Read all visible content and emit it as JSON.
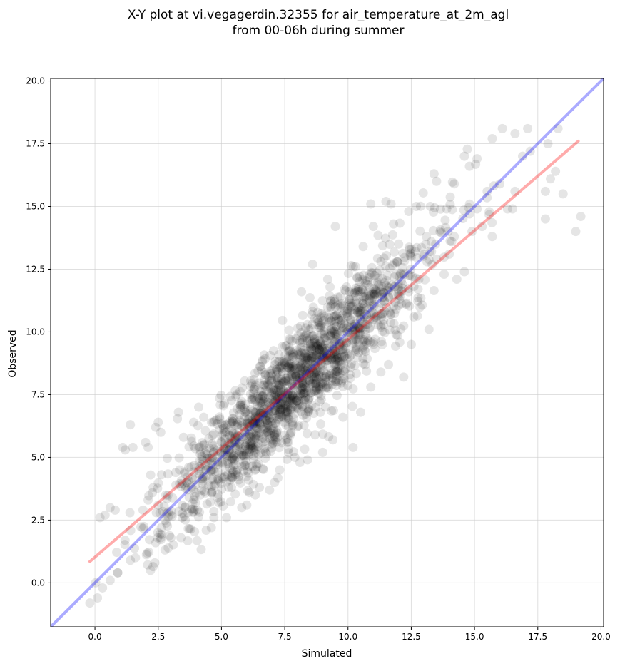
{
  "chart_data": {
    "type": "scatter",
    "title": "X-Y plot at vi.vegagerdin.32355 for air_temperature_at_2m_agl",
    "subtitle": "from 00-06h during summer",
    "xlabel": "Simulated",
    "ylabel": "Observed",
    "xlim": [
      -1.75,
      20.1
    ],
    "ylim": [
      -1.75,
      20.1
    ],
    "xticks": [
      0.0,
      2.5,
      5.0,
      7.5,
      10.0,
      12.5,
      15.0,
      17.5,
      20.0
    ],
    "yticks": [
      0.0,
      2.5,
      5.0,
      7.5,
      10.0,
      12.5,
      15.0,
      17.5,
      20.0
    ],
    "tick_labels": [
      "0.0",
      "2.5",
      "5.0",
      "7.5",
      "10.0",
      "12.5",
      "15.0",
      "17.5",
      "20.0"
    ],
    "grid": true,
    "colors": {
      "points": "#000000",
      "identity_line": "#0000ff",
      "fit_line": "#ff0000",
      "grid": "#cccccc"
    },
    "series": [
      {
        "kind": "points",
        "points": [
          [
            -0.2,
            -0.8
          ],
          [
            0.1,
            -0.6
          ],
          [
            0.3,
            -0.2
          ],
          [
            0.2,
            2.6
          ],
          [
            0.4,
            2.7
          ],
          [
            0.6,
            3.0
          ],
          [
            0.8,
            2.9
          ],
          [
            0.9,
            0.4
          ],
          [
            1.1,
            5.4
          ],
          [
            1.2,
            5.3
          ],
          [
            1.4,
            6.3
          ],
          [
            1.5,
            5.4
          ],
          [
            1.6,
            1.0
          ],
          [
            1.4,
            0.9
          ],
          [
            0.6,
            0.1
          ],
          [
            0.9,
            0.4
          ],
          [
            1.9,
            2.9
          ],
          [
            2.0,
            5.6
          ],
          [
            2.1,
            5.4
          ],
          [
            2.2,
            4.3
          ],
          [
            2.4,
            6.2
          ],
          [
            2.5,
            6.4
          ],
          [
            2.6,
            6.0
          ],
          [
            2.4,
            1.6
          ],
          [
            2.6,
            1.8
          ],
          [
            3.0,
            1.8
          ],
          [
            3.4,
            1.8
          ],
          [
            2.1,
            3.3
          ],
          [
            2.3,
            3.8
          ],
          [
            2.5,
            3.1
          ],
          [
            2.8,
            3.5
          ],
          [
            3.0,
            2.7
          ],
          [
            3.2,
            3.9
          ],
          [
            3.3,
            6.8
          ],
          [
            3.5,
            5.8
          ],
          [
            3.7,
            4.6
          ],
          [
            3.9,
            6.4
          ],
          [
            4.1,
            7.0
          ],
          [
            4.3,
            6.6
          ],
          [
            4.4,
            2.1
          ],
          [
            4.6,
            2.2
          ],
          [
            4.7,
            2.6
          ],
          [
            4.9,
            3.2
          ],
          [
            5.2,
            2.6
          ],
          [
            5.4,
            3.8
          ],
          [
            5.6,
            4.4
          ],
          [
            5.8,
            3.0
          ],
          [
            6.0,
            3.1
          ],
          [
            6.1,
            3.6
          ],
          [
            6.5,
            3.8
          ],
          [
            6.9,
            3.7
          ],
          [
            7.1,
            4.0
          ],
          [
            7.3,
            4.5
          ],
          [
            7.6,
            5.6
          ],
          [
            7.9,
            5.0
          ],
          [
            8.1,
            4.8
          ],
          [
            8.4,
            4.9
          ],
          [
            8.7,
            5.9
          ],
          [
            9.0,
            5.2
          ],
          [
            9.4,
            5.7
          ],
          [
            9.8,
            6.6
          ],
          [
            10.2,
            5.4
          ],
          [
            10.5,
            6.8
          ],
          [
            10.9,
            7.8
          ],
          [
            11.3,
            8.4
          ],
          [
            11.6,
            8.7
          ],
          [
            11.9,
            9.9
          ],
          [
            12.2,
            8.2
          ],
          [
            12.5,
            9.5
          ],
          [
            12.4,
            11.6
          ],
          [
            12.8,
            12.1
          ],
          [
            13.2,
            10.1
          ],
          [
            13.5,
            12.9
          ],
          [
            13.8,
            12.3
          ],
          [
            14.1,
            13.6
          ],
          [
            14.3,
            12.1
          ],
          [
            14.6,
            12.4
          ],
          [
            14.9,
            14.0
          ],
          [
            15.1,
            14.9
          ],
          [
            15.3,
            14.2
          ],
          [
            15.5,
            15.6
          ],
          [
            15.7,
            13.8
          ],
          [
            16.0,
            15.9
          ],
          [
            16.1,
            18.1
          ],
          [
            16.3,
            14.9
          ],
          [
            16.6,
            17.9
          ],
          [
            16.9,
            17.0
          ],
          [
            17.1,
            18.1
          ],
          [
            17.2,
            17.2
          ],
          [
            17.8,
            15.6
          ],
          [
            17.9,
            17.5
          ],
          [
            18.0,
            16.1
          ],
          [
            18.2,
            16.4
          ],
          [
            18.3,
            18.1
          ],
          [
            18.5,
            15.5
          ],
          [
            19.0,
            14.0
          ],
          [
            19.2,
            14.6
          ],
          [
            17.8,
            14.5
          ],
          [
            16.6,
            15.6
          ],
          [
            16.5,
            14.9
          ],
          [
            15.7,
            17.7
          ],
          [
            14.6,
            17.0
          ],
          [
            14.8,
            16.6
          ],
          [
            15.1,
            16.9
          ],
          [
            13.4,
            16.3
          ],
          [
            13.5,
            16.0
          ],
          [
            14.2,
            15.9
          ],
          [
            12.7,
            15.0
          ],
          [
            11.8,
            14.3
          ],
          [
            11.5,
            15.2
          ],
          [
            11.7,
            15.1
          ],
          [
            10.9,
            15.1
          ],
          [
            9.5,
            14.2
          ],
          [
            11.0,
            14.2
          ],
          [
            13.9,
            14.9
          ],
          [
            14.8,
            14.7
          ],
          [
            12.4,
            14.8
          ],
          [
            8.6,
            12.7
          ],
          [
            9.2,
            12.1
          ],
          [
            10.3,
            12.6
          ],
          [
            10.6,
            13.4
          ],
          [
            11.3,
            12.8
          ],
          [
            12.0,
            13.5
          ],
          [
            12.5,
            13.3
          ],
          [
            13.1,
            13.8
          ],
          [
            13.3,
            13.2
          ],
          [
            14.0,
            13.1
          ],
          [
            14.2,
            13.8
          ],
          [
            12.3,
            11.1
          ],
          [
            12.6,
            10.6
          ],
          [
            11.0,
            9.6
          ],
          [
            10.7,
            10.1
          ],
          [
            11.4,
            10.3
          ],
          [
            12.0,
            11.8
          ],
          [
            11.9,
            10.9
          ],
          [
            11.6,
            11.4
          ]
        ]
      },
      {
        "name": "",
        "kind": "line",
        "role": "identity",
        "x": [
          -1.75,
          20.1
        ],
        "y": [
          -1.75,
          20.1
        ]
      },
      {
        "name": "",
        "kind": "line",
        "role": "regression",
        "x": [
          -0.2,
          19.1
        ],
        "y": [
          0.85,
          17.6
        ]
      }
    ],
    "cloud": {
      "center_x": 8.0,
      "center_y": 8.0,
      "count": 1700,
      "x_spread": 2.6,
      "y_spread": 1.05
    }
  }
}
